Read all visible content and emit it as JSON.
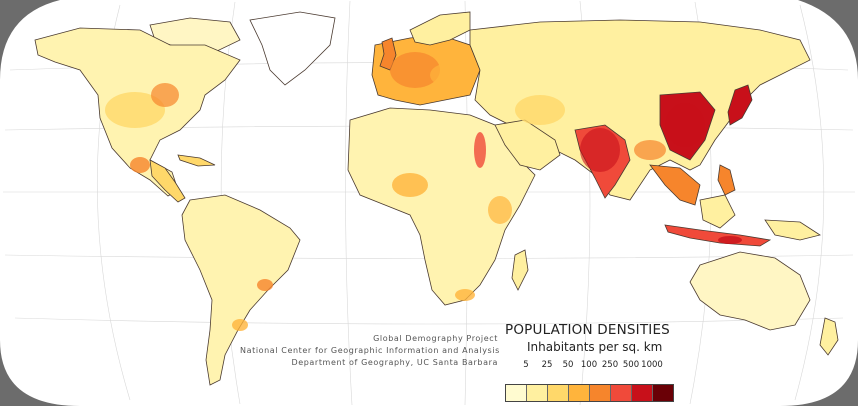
{
  "credits": {
    "line1": "Global Demography Project",
    "line2": "National Center for Geographic Information and Analysis",
    "line3": "Department of Geography, UC Santa Barbara"
  },
  "legend": {
    "title": "POPULATION DENSITIES",
    "subtitle": "Inhabitants per sq. km",
    "ticks": [
      "5",
      "25",
      "50",
      "100",
      "250",
      "500",
      "1000"
    ],
    "colors": [
      "#fffbd0",
      "#fff0a0",
      "#ffd86a",
      "#ffb43c",
      "#f6852c",
      "#f04a3a",
      "#c8101a",
      "#6a0006"
    ]
  },
  "colors": {
    "ocean": "#ffffff",
    "frame": "#6c6c6c",
    "land_base": "#fff3b0",
    "coast": "#4a3a30"
  }
}
